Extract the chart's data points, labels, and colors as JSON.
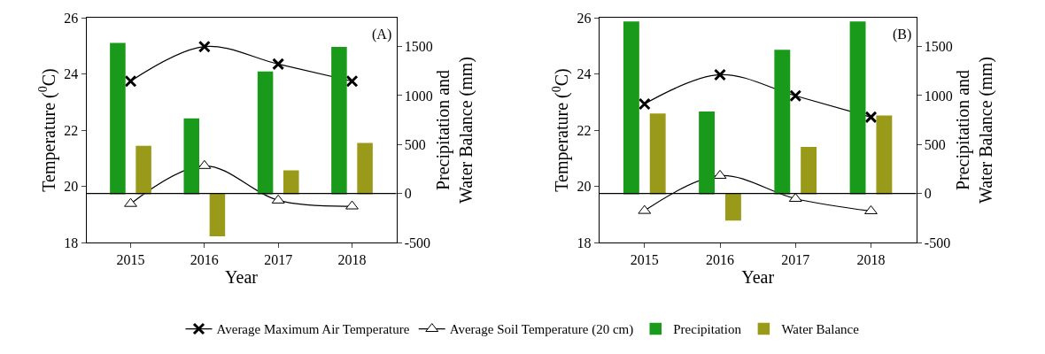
{
  "chart_data": [
    {
      "type": "bar",
      "categories": [
        "2015",
        "2016",
        "2017",
        "2018"
      ],
      "xlabel": "Year",
      "ylabel": "Temperature ($^{0}$C)",
      "y2label": "Precipitation and\nWater Balance (mm)",
      "ylim": [
        18,
        26
      ],
      "yticks": [
        18,
        20,
        22,
        24,
        26
      ],
      "y2lim": [
        -500,
        1795
      ],
      "y2ticks": [
        -500,
        0,
        500,
        1000,
        1500
      ],
      "legend": "bottom",
      "annotations": [
        "(A)"
      ],
      "ref_lines": [
        {
          "axis": "y2",
          "value": 0,
          "color": "#000000"
        }
      ],
      "series": [
        {
          "name": "Average Maximum Air Temperature",
          "type": "line",
          "marker": "cross",
          "color": "#000000",
          "values": [
            23.74,
            24.97,
            24.35,
            23.74
          ]
        },
        {
          "name": "Average Soil Temperature (20 cm)",
          "type": "line",
          "marker": "triangle",
          "color": "#000000",
          "values": [
            19.38,
            20.73,
            19.5,
            19.29
          ]
        },
        {
          "name": "Precipitation",
          "axis": "y2",
          "color": "#1a9a1a",
          "values": [
            1530,
            760,
            1240,
            1490
          ]
        },
        {
          "name": "Water Balance",
          "axis": "y2",
          "color": "#9a9a1a",
          "values": [
            480,
            -430,
            230,
            510
          ]
        }
      ]
    },
    {
      "type": "bar",
      "categories": [
        "2015",
        "2016",
        "2017",
        "2018"
      ],
      "xlabel": "Year",
      "ylabel": "Temperature ($^{0}$C)",
      "y2label": "Precipitation and\nWater Balance (mm)",
      "ylim": [
        18,
        26
      ],
      "yticks": [
        18,
        20,
        22,
        24,
        26
      ],
      "y2lim": [
        -500,
        1795
      ],
      "y2ticks": [
        -500,
        0,
        500,
        1000,
        1500
      ],
      "annotations": [
        "(B)"
      ],
      "ref_lines": [
        {
          "axis": "y2",
          "value": 0,
          "color": "#000000"
        }
      ],
      "series": [
        {
          "type": "line",
          "marker": "cross",
          "color": "#000000",
          "values": [
            22.93,
            23.97,
            23.22,
            22.46
          ]
        },
        {
          "type": "line",
          "marker": "triangle",
          "color": "#000000",
          "values": [
            19.13,
            20.38,
            19.56,
            19.12
          ]
        },
        {
          "axis": "y2",
          "color": "#1a9a1a",
          "values": [
            1750,
            830,
            1460,
            1750
          ]
        },
        {
          "axis": "y2",
          "color": "#9a9a1a",
          "values": [
            810,
            -270,
            470,
            790
          ]
        }
      ]
    }
  ]
}
